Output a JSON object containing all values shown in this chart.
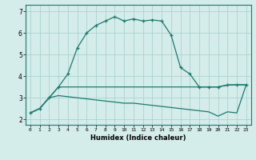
{
  "x": [
    0,
    1,
    2,
    3,
    4,
    5,
    6,
    7,
    8,
    9,
    10,
    11,
    12,
    13,
    14,
    15,
    16,
    17,
    18,
    19,
    20,
    21,
    22,
    23
  ],
  "line1": [
    2.3,
    2.5,
    3.0,
    3.5,
    4.1,
    5.3,
    6.0,
    6.35,
    6.55,
    6.75,
    6.55,
    6.65,
    6.55,
    6.6,
    6.55,
    5.9,
    4.4,
    4.1,
    3.5,
    3.5,
    3.5,
    3.6,
    3.6,
    3.6
  ],
  "line2": [
    2.3,
    2.5,
    3.0,
    3.5,
    3.5,
    3.5,
    3.5,
    3.5,
    3.5,
    3.5,
    3.5,
    3.5,
    3.5,
    3.5,
    3.5,
    3.5,
    3.5,
    3.5,
    3.5,
    3.5,
    3.5,
    3.58,
    3.6,
    3.6
  ],
  "line3": [
    2.3,
    2.5,
    3.0,
    3.1,
    3.05,
    3.0,
    2.95,
    2.9,
    2.85,
    2.8,
    2.75,
    2.75,
    2.7,
    2.65,
    2.6,
    2.55,
    2.5,
    2.45,
    2.4,
    2.35,
    2.15,
    2.35,
    2.3,
    3.6
  ],
  "color": "#1a7a6e",
  "bg_color": "#d4ecea",
  "grid_color": "#aad4d0",
  "xlabel": "Humidex (Indice chaleur)",
  "xlim": [
    -0.5,
    23.5
  ],
  "ylim": [
    1.75,
    7.3
  ],
  "xticks": [
    0,
    1,
    2,
    3,
    4,
    5,
    6,
    7,
    8,
    9,
    10,
    11,
    12,
    13,
    14,
    15,
    16,
    17,
    18,
    19,
    20,
    21,
    22,
    23
  ],
  "yticks": [
    2,
    3,
    4,
    5,
    6,
    7
  ]
}
